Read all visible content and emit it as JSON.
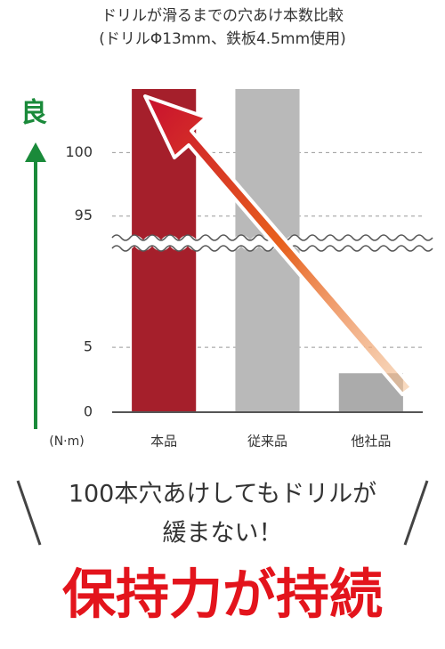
{
  "chart_data": {
    "type": "bar",
    "title": "ドリルが滑るまでの穴あけ本数比較",
    "subtitle": "(ドリルΦ13mm、鉄板4.5mm使用)",
    "y_axis_label": "良",
    "y_unit": "(N·m)",
    "categories": [
      "本品",
      "従来品",
      "他社品"
    ],
    "values": [
      105,
      105,
      3
    ],
    "colors": [
      "#a51f2b",
      "#b9b9b9",
      "#ababab"
    ],
    "ylim": [
      0,
      105
    ],
    "y_break": [
      12,
      94
    ],
    "yticks": [
      0,
      5,
      95,
      100
    ],
    "grid": true
  },
  "caption": {
    "line1": "100本穴あけしてもドリルが",
    "line2": "緩まない！",
    "headline": "保持力が持続"
  }
}
